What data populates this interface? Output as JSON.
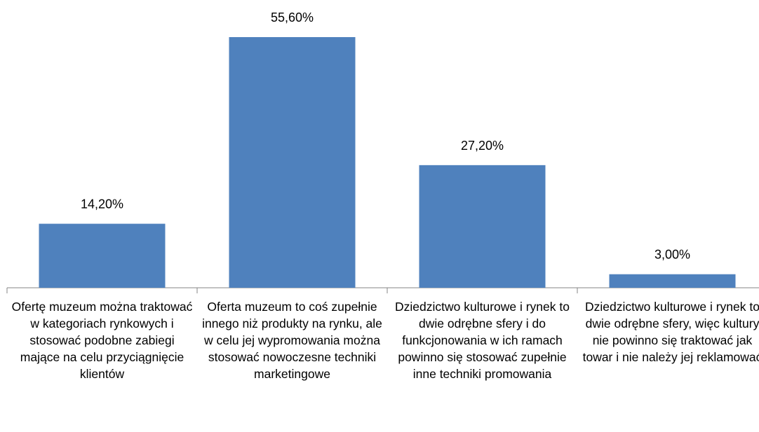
{
  "chart_data": {
    "type": "bar",
    "categories": [
      "Ofertę muzeum można traktować w kategoriach rynkowych i stosować podobne zabiegi mające na celu przyciągnięcie klientów",
      "Oferta muzeum to coś zupełnie innego niż produkty na rynku, ale w celu jej wypromowania można stosować nowoczesne techniki marketingowe",
      "Dziedzictwo kulturowe i rynek to dwie odrębne sfery i do funkcjonowania w ich ramach powinno się stosować zupełnie inne techniki promowania",
      "Dziedzictwo kulturowe i rynek to dwie odrębne sfery, więc kultury nie powinno się traktować jak towar i nie należy jej reklamować"
    ],
    "values": [
      14.2,
      55.6,
      27.2,
      3.0
    ],
    "value_labels": [
      "14,20%",
      "55,60%",
      "27,20%",
      "3,00%"
    ],
    "color": "#4f81bd"
  }
}
